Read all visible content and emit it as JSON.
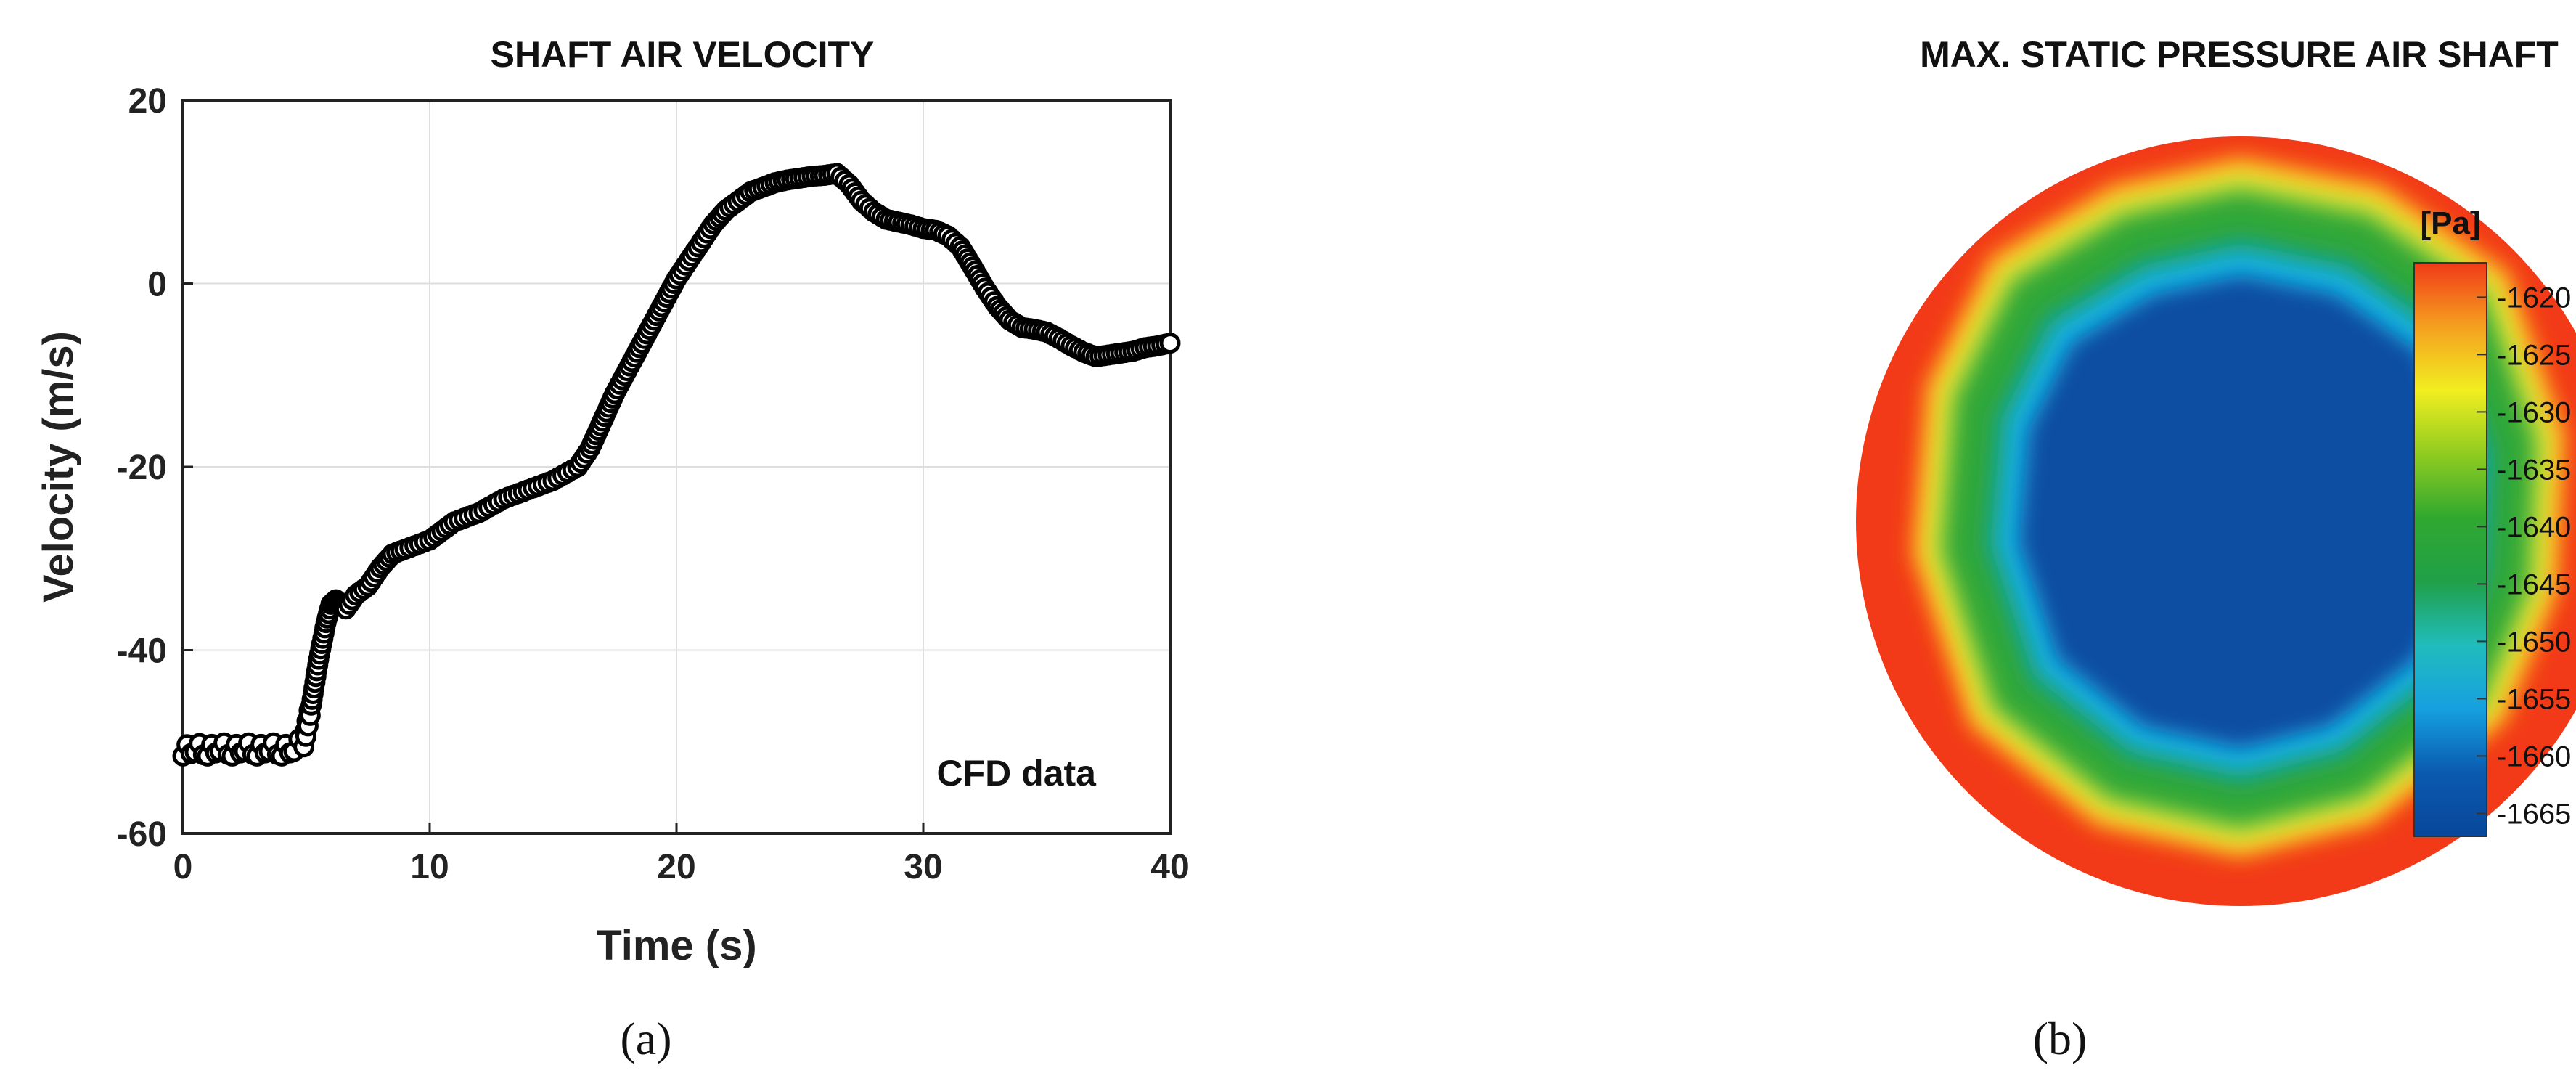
{
  "chart_data": [
    {
      "type": "scatter",
      "title": "SHAFT AIR VELOCITY",
      "xlabel": "Time (s)",
      "ylabel": "Velocity (m/s)",
      "xlim": [
        0,
        40
      ],
      "ylim": [
        -60,
        20
      ],
      "xticks": [
        "0",
        "10",
        "20",
        "30",
        "40"
      ],
      "yticks": [
        "20",
        "0",
        "-20",
        "-40",
        "-60"
      ],
      "grid": true,
      "annotation": "CFD data",
      "caption": "(a)",
      "marker": "open-circle",
      "marker_color": "#000000",
      "series": [
        {
          "x": [
            0,
            0.5,
            1,
            1.5,
            2,
            2.5,
            3,
            3.5,
            4,
            4.5,
            4.9,
            5.2,
            5.5,
            5.8,
            6,
            6.2,
            6.4,
            6.6,
            7,
            7.5,
            8,
            8.5,
            9,
            10,
            11,
            12,
            13,
            14,
            15,
            16,
            16.5,
            17,
            17.5,
            18,
            18.5,
            19,
            19.5,
            20,
            20.5,
            21,
            21.5,
            22,
            22.5,
            23,
            23.5,
            24,
            24.5,
            25,
            25.5,
            26,
            26.5,
            27,
            27.5,
            28,
            28.5,
            29,
            29.5,
            30,
            30.5,
            31,
            31.5,
            32,
            32.5,
            33,
            33.5,
            34,
            34.5,
            35,
            35.5,
            36,
            36.5,
            37,
            37.5,
            38,
            38.5,
            39,
            39.5,
            40
          ],
          "y": [
            -51,
            -50.6,
            -51,
            -50.5,
            -51,
            -50.5,
            -51,
            -50.5,
            -51,
            -50.5,
            -50,
            -46,
            -41,
            -37,
            -35,
            -34.5,
            -35,
            -35.5,
            -34,
            -33,
            -31,
            -29.5,
            -29,
            -28,
            -26,
            -25,
            -23.5,
            -22.5,
            -21.5,
            -20,
            -18,
            -15,
            -12,
            -9.5,
            -7,
            -4.5,
            -2,
            0.5,
            2.5,
            4.5,
            6.5,
            8,
            9,
            10,
            10.5,
            11,
            11.3,
            11.5,
            11.7,
            11.8,
            12,
            10.8,
            9,
            7.8,
            7,
            6.7,
            6.4,
            6,
            5.8,
            5.2,
            4,
            1.8,
            -0.5,
            -2.5,
            -4,
            -4.8,
            -5,
            -5.3,
            -6,
            -6.8,
            -7.5,
            -8,
            -7.8,
            -7.6,
            -7.4,
            -7,
            -6.8,
            -6.5
          ]
        }
      ]
    },
    {
      "type": "heatmap",
      "title": "MAX. STATIC PRESSURE AIR SHAFT",
      "caption": "(b)",
      "colorbar": {
        "unit": "[Pa]",
        "ticks": [
          "-1620",
          "-1625",
          "-1630",
          "-1635",
          "-1640",
          "-1645",
          "-1650",
          "-1655",
          "-1660",
          "-1665"
        ],
        "range": [
          -1667,
          -1617
        ],
        "colors": [
          "#08479a",
          "#0a5ab0",
          "#16a0e0",
          "#20bcbc",
          "#20a048",
          "#30a830",
          "#90cc20",
          "#f2ee20",
          "#f4a020",
          "#f23a18"
        ]
      },
      "rings": [
        {
          "level": -1618,
          "color": "#f23a18"
        },
        {
          "level": -1624,
          "color": "#f6801e"
        },
        {
          "level": -1628,
          "color": "#fcd42a"
        },
        {
          "level": -1632,
          "color": "#c8e038"
        },
        {
          "level": -1638,
          "color": "#30a838"
        },
        {
          "level": -1650,
          "color": "#1ea070"
        },
        {
          "level": -1656,
          "color": "#18b4e4"
        },
        {
          "level": -1666,
          "color": "#0a4ea2"
        }
      ]
    }
  ]
}
